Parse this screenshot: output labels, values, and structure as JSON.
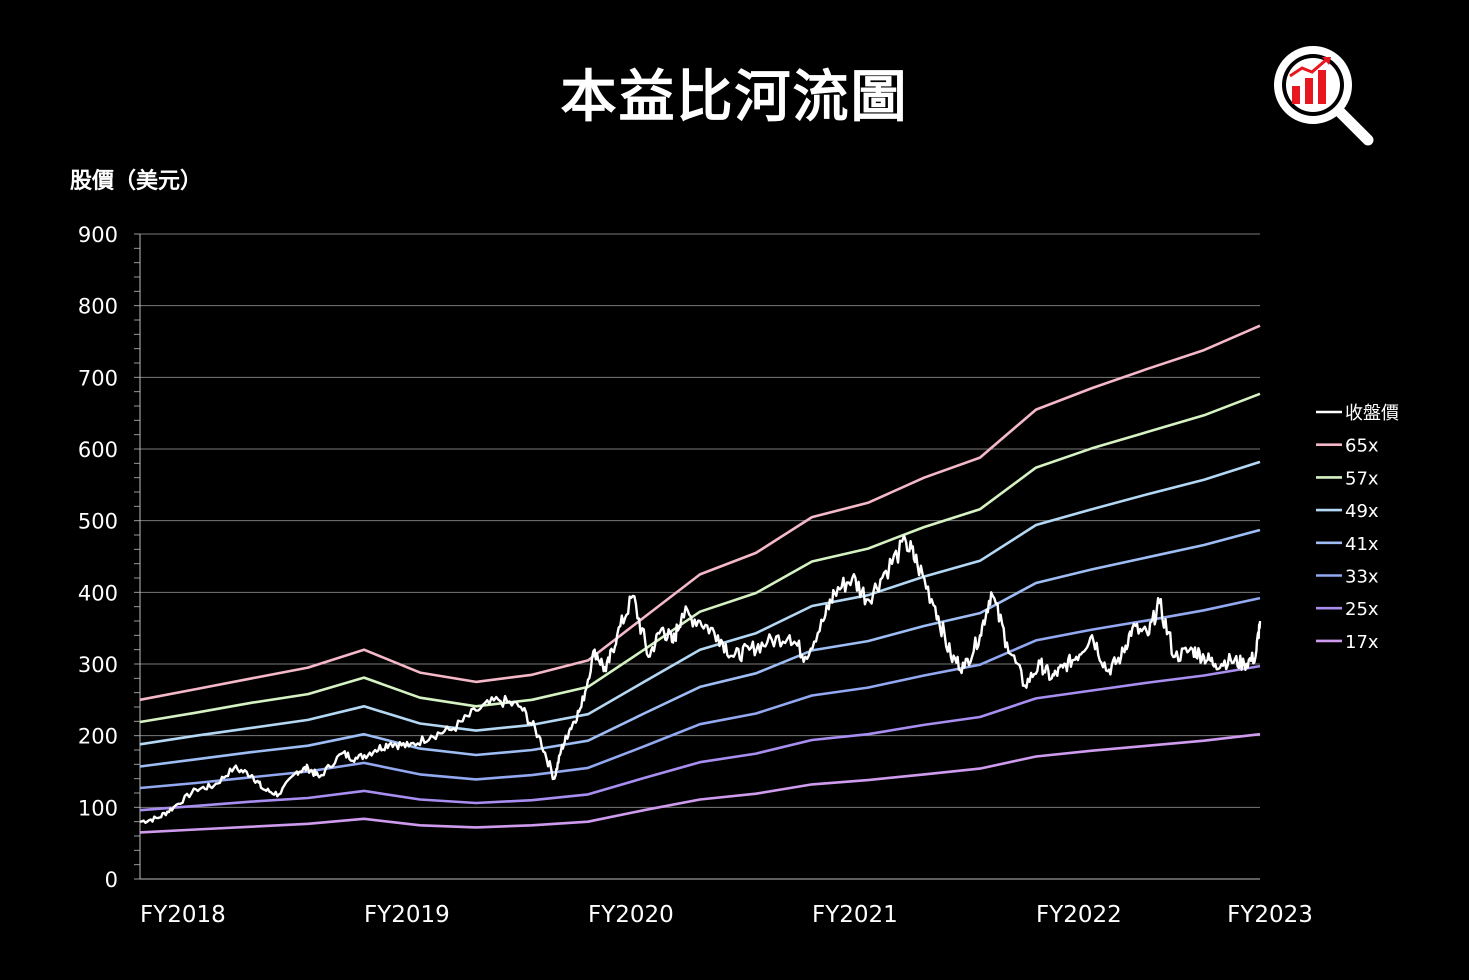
{
  "title": "本益比河流圖",
  "chart_data": {
    "type": "line",
    "title": "本益比河流圖",
    "ylabel": "股價（美元）",
    "xlabel": "",
    "ylim": [
      0,
      900
    ],
    "yticks": [
      0,
      100,
      200,
      300,
      400,
      500,
      600,
      700,
      800,
      900
    ],
    "xticks": [
      "FY2018",
      "FY2019",
      "FY2020",
      "FY2021",
      "FY2022",
      "FY2023"
    ],
    "x": [
      2018.0,
      2018.25,
      2018.5,
      2018.75,
      2019.0,
      2019.25,
      2019.5,
      2019.75,
      2020.0,
      2020.25,
      2020.5,
      2020.75,
      2021.0,
      2021.25,
      2021.5,
      2021.75,
      2022.0,
      2022.25,
      2022.5,
      2022.75,
      2023.0
    ],
    "grid": true,
    "legend_position": "right",
    "series": [
      {
        "name": "65x",
        "color": "#f4b8c8",
        "values": [
          250,
          265,
          280,
          295,
          320,
          288,
          275,
          285,
          305,
          365,
          425,
          455,
          505,
          525,
          560,
          588,
          655,
          685,
          712,
          738,
          772
        ]
      },
      {
        "name": "57x",
        "color": "#d4f2c2",
        "values": [
          219,
          232,
          246,
          258,
          281,
          253,
          241,
          250,
          268,
          320,
          373,
          399,
          443,
          461,
          491,
          516,
          574,
          601,
          624,
          647,
          677
        ]
      },
      {
        "name": "49x",
        "color": "#b4d8f4",
        "values": [
          188,
          200,
          211,
          222,
          241,
          217,
          207,
          215,
          230,
          275,
          320,
          343,
          381,
          396,
          422,
          444,
          494,
          516,
          537,
          557,
          582
        ]
      },
      {
        "name": "41x",
        "color": "#9dbdf4",
        "values": [
          157,
          167,
          177,
          186,
          202,
          182,
          173,
          180,
          193,
          231,
          268,
          287,
          319,
          332,
          353,
          371,
          413,
          432,
          449,
          466,
          487
        ]
      },
      {
        "name": "33x",
        "color": "#92a8f0",
        "values": [
          127,
          134,
          142,
          150,
          162,
          146,
          139,
          145,
          155,
          185,
          216,
          231,
          256,
          267,
          284,
          299,
          333,
          348,
          361,
          375,
          392
        ]
      },
      {
        "name": "25x",
        "color": "#a88ef0",
        "values": [
          96,
          102,
          108,
          113,
          123,
          111,
          106,
          110,
          118,
          141,
          163,
          175,
          194,
          202,
          215,
          226,
          252,
          263,
          274,
          284,
          297
        ]
      },
      {
        "name": "17x",
        "color": "#cf9bef",
        "values": [
          65,
          69,
          73,
          77,
          84,
          75,
          72,
          75,
          80,
          96,
          111,
          119,
          132,
          138,
          146,
          154,
          171,
          179,
          186,
          193,
          202
        ]
      }
    ],
    "price": {
      "name": "收盤價",
      "color": "#ffffff",
      "x": [
        2018.0,
        2018.08,
        2018.15,
        2018.25,
        2018.33,
        2018.42,
        2018.5,
        2018.55,
        2018.62,
        2018.7,
        2018.75,
        2018.8,
        2018.9,
        2018.97,
        2019.05,
        2019.12,
        2019.2,
        2019.3,
        2019.4,
        2019.5,
        2019.6,
        2019.7,
        2019.78,
        2019.85,
        2019.88,
        2019.92,
        2019.97,
        2020.03,
        2020.08,
        2020.13,
        2020.2,
        2020.27,
        2020.33,
        2020.38,
        2020.42,
        2020.5,
        2020.58,
        2020.65,
        2020.72,
        2020.8,
        2020.9,
        2020.97,
        2021.05,
        2021.1,
        2021.18,
        2021.25,
        2021.33,
        2021.42,
        2021.47,
        2021.55,
        2021.62,
        2021.68,
        2021.75,
        2021.8,
        2021.87,
        2021.95,
        2022.02,
        2022.07,
        2022.12,
        2022.18,
        2022.25,
        2022.32,
        2022.38,
        2022.43,
        2022.5,
        2022.55,
        2022.62,
        2022.7,
        2022.75,
        2022.8,
        2022.87,
        2022.93,
        2022.98,
        2023.0
      ],
      "values": [
        80,
        85,
        100,
        125,
        130,
        155,
        145,
        125,
        118,
        150,
        155,
        142,
        175,
        168,
        180,
        190,
        185,
        200,
        210,
        235,
        250,
        240,
        200,
        140,
        180,
        210,
        240,
        320,
        290,
        340,
        395,
        310,
        350,
        330,
        370,
        360,
        340,
        310,
        320,
        330,
        340,
        310,
        360,
        400,
        420,
        390,
        430,
        470,
        440,
        380,
        310,
        295,
        340,
        400,
        330,
        270,
        300,
        280,
        295,
        310,
        340,
        290,
        310,
        350,
        340,
        385,
        310,
        320,
        310,
        300,
        305,
        300,
        310,
        360
      ]
    }
  },
  "legend": {
    "items": [
      "收盤價",
      "65x",
      "57x",
      "49x",
      "41x",
      "33x",
      "25x",
      "17x"
    ]
  }
}
